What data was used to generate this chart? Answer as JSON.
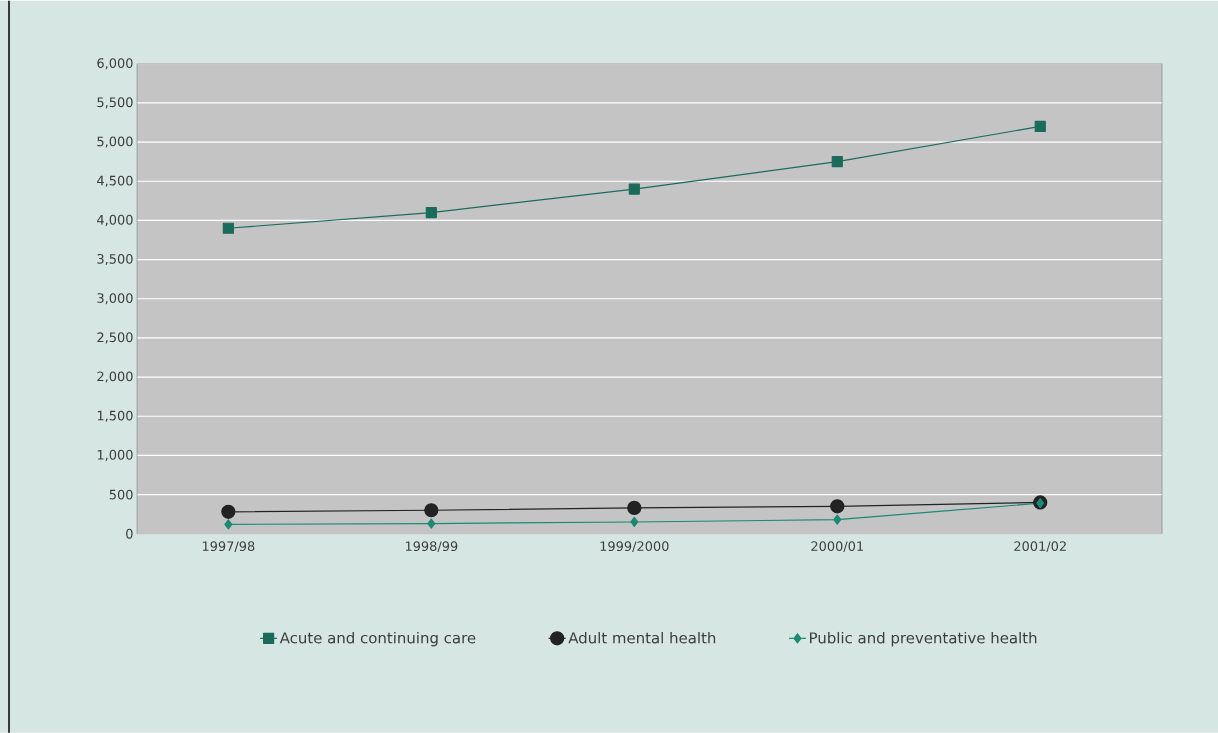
{
  "chart_data": {
    "type": "line",
    "categories": [
      "1997/98",
      "1998/99",
      "1999/2000",
      "2000/01",
      "2001/02"
    ],
    "series": [
      {
        "name": "Acute and continuing care",
        "color": "#1b6b5c",
        "marker": "square",
        "values": [
          3900,
          4100,
          4400,
          4750,
          5200
        ]
      },
      {
        "name": "Adult mental health",
        "color": "#222222",
        "marker": "circle",
        "values": [
          280,
          300,
          330,
          350,
          400
        ]
      },
      {
        "name": "Public and preventative health",
        "color": "#1a8a72",
        "marker": "diamond",
        "values": [
          120,
          130,
          150,
          180,
          390
        ]
      }
    ],
    "ylim": [
      0,
      6000
    ],
    "yticks": [
      {
        "value": 0,
        "label": "0"
      },
      {
        "value": 500,
        "label": "500"
      },
      {
        "value": 1000,
        "label": "1,000"
      },
      {
        "value": 1500,
        "label": "1,500"
      },
      {
        "value": 2000,
        "label": "2,000"
      },
      {
        "value": 2500,
        "label": "2,500"
      },
      {
        "value": 3000,
        "label": "3,000"
      },
      {
        "value": 3500,
        "label": "3,500"
      },
      {
        "value": 4000,
        "label": "4,000"
      },
      {
        "value": 4500,
        "label": "4,500"
      },
      {
        "value": 5000,
        "label": "5,000"
      },
      {
        "value": 5500,
        "label": "5,500"
      },
      {
        "value": 6000,
        "label": "6,000"
      }
    ],
    "grid": "y",
    "legend": "bottom"
  }
}
